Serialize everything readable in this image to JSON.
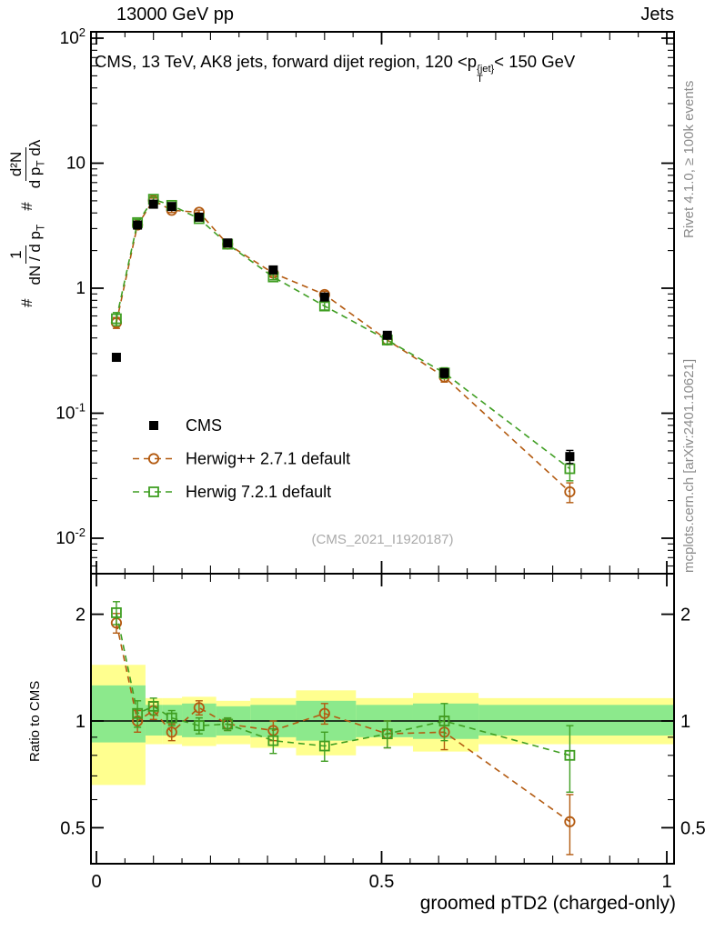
{
  "header": {
    "left": "13000 GeV pp",
    "right": "Jets"
  },
  "panel_title": {
    "prefix": "CMS, 13 TeV, AK8 jets, forward dijet region, 120 <p",
    "sup": "{jet}",
    "sub": "T",
    "suffix": "< 150 GeV"
  },
  "ylabel_main": {
    "hash1": "#",
    "f1num": "1",
    "f1den": "dN / d p",
    "f1den_sub": "T",
    "hash2": "#",
    "f2num": "d²N",
    "f2den": "d p",
    "f2den_sub": "T",
    "f2den_post": " dλ"
  },
  "ratio_ylabel": "Ratio to CMS",
  "x_title": "groomed pTD2 (charged-only)",
  "watermark": "(CMS_2021_I1920187)",
  "right_labels": {
    "top": "Rivet 4.1.0, ≥ 100k events",
    "bottom": "mcplots.cern.ch [arXiv:2401.10621]"
  },
  "chart_data": {
    "type": "line",
    "title": "CMS, 13 TeV, AK8 jets, forward dijet region, 120 < pT{jet} < 150 GeV",
    "xlabel": "groomed pTD2 (charged-only)",
    "ylabel": "# 1/(dN/dpT) # d²N/(dpT dλ)",
    "x_axis": {
      "min": 0,
      "max": 1,
      "major_ticks": [
        0,
        0.5,
        1
      ],
      "major_labels": [
        "0",
        "0.5",
        "1"
      ]
    },
    "y_axis_main": {
      "scale": "log",
      "min": 0.005,
      "max": 110,
      "ticks": [
        {
          "v": 100,
          "label": "10^2"
        },
        {
          "v": 10,
          "label": "10"
        },
        {
          "v": 1,
          "label": "1"
        },
        {
          "v": 0.1,
          "label": "10^-1"
        },
        {
          "v": 0.01,
          "label": "10^-2"
        }
      ]
    },
    "y_axis_ratio": {
      "scale": "log",
      "min": 0.4,
      "max": 2.6,
      "title": "Ratio to CMS",
      "ticks": [
        {
          "v": 2,
          "label": "2"
        },
        {
          "v": 1,
          "label": "1"
        },
        {
          "v": 0.5,
          "label": "0.5"
        }
      ],
      "minor_ticks": [
        0.6,
        0.7,
        0.8,
        0.9
      ]
    },
    "x": [
      0.035,
      0.072,
      0.1,
      0.132,
      0.18,
      0.23,
      0.31,
      0.4,
      0.51,
      0.61,
      0.83
    ],
    "series": [
      {
        "id": "cms",
        "name": "CMS",
        "marker": "square-filled",
        "color": "#000000",
        "line": "none",
        "values": [
          0.28,
          3.2,
          4.7,
          4.5,
          3.7,
          2.3,
          1.4,
          0.85,
          0.42,
          0.21,
          0.045
        ],
        "yerr_rel": [
          0.05,
          0.04,
          0.04,
          0.04,
          0.04,
          0.04,
          0.05,
          0.06,
          0.06,
          0.08,
          0.12
        ]
      },
      {
        "id": "herwigpp",
        "name": "Herwig++ 2.7.1 default",
        "marker": "circle-open",
        "color": "#b35a10",
        "line": "dashed",
        "values": [
          0.53,
          3.2,
          5.05,
          4.2,
          4.05,
          2.25,
          1.32,
          0.89,
          0.385,
          0.195,
          0.0235
        ],
        "yerr_rel": [
          0.1,
          0.05,
          0.04,
          0.04,
          0.04,
          0.04,
          0.05,
          0.06,
          0.07,
          0.09,
          0.18
        ],
        "ratio": [
          1.89,
          1.0,
          1.07,
          0.93,
          1.09,
          0.98,
          0.94,
          1.05,
          0.92,
          0.93,
          0.52
        ],
        "ratio_err": [
          0.12,
          0.07,
          0.06,
          0.05,
          0.05,
          0.04,
          0.06,
          0.07,
          0.08,
          0.1,
          0.1
        ]
      },
      {
        "id": "herwig7",
        "name": "Herwig 7.2.1 default",
        "marker": "square-open",
        "color": "#3f9e22",
        "line": "dashed",
        "values": [
          0.57,
          3.35,
          5.15,
          4.6,
          3.6,
          2.25,
          1.23,
          0.72,
          0.385,
          0.21,
          0.036
        ],
        "yerr_rel": [
          0.12,
          0.06,
          0.04,
          0.04,
          0.04,
          0.04,
          0.05,
          0.07,
          0.07,
          0.1,
          0.2
        ],
        "ratio": [
          2.02,
          1.05,
          1.1,
          1.02,
          0.97,
          0.98,
          0.88,
          0.85,
          0.92,
          1.0,
          0.8
        ],
        "ratio_err": [
          0.15,
          0.09,
          0.06,
          0.05,
          0.05,
          0.04,
          0.07,
          0.08,
          0.08,
          0.12,
          0.17
        ]
      }
    ],
    "ratio_bands": {
      "bin_edges": [
        0,
        0.086,
        0.115,
        0.15,
        0.21,
        0.27,
        0.35,
        0.455,
        0.555,
        0.67,
        1.0
      ],
      "yellow_lo": [
        0.66,
        0.86,
        0.86,
        0.85,
        0.86,
        0.84,
        0.8,
        0.85,
        0.82,
        0.86
      ],
      "yellow_hi": [
        1.44,
        1.16,
        1.16,
        1.17,
        1.14,
        1.16,
        1.22,
        1.16,
        1.2,
        1.16
      ],
      "green_lo": [
        0.87,
        0.91,
        0.91,
        0.9,
        0.91,
        0.9,
        0.88,
        0.9,
        0.89,
        0.91
      ],
      "green_hi": [
        1.26,
        1.11,
        1.11,
        1.12,
        1.1,
        1.11,
        1.14,
        1.11,
        1.12,
        1.11
      ]
    },
    "colors": {
      "yellow_band": "#ffff8f",
      "green_band": "#8ce98c"
    },
    "legend_position": "middle-left",
    "grid": false
  }
}
